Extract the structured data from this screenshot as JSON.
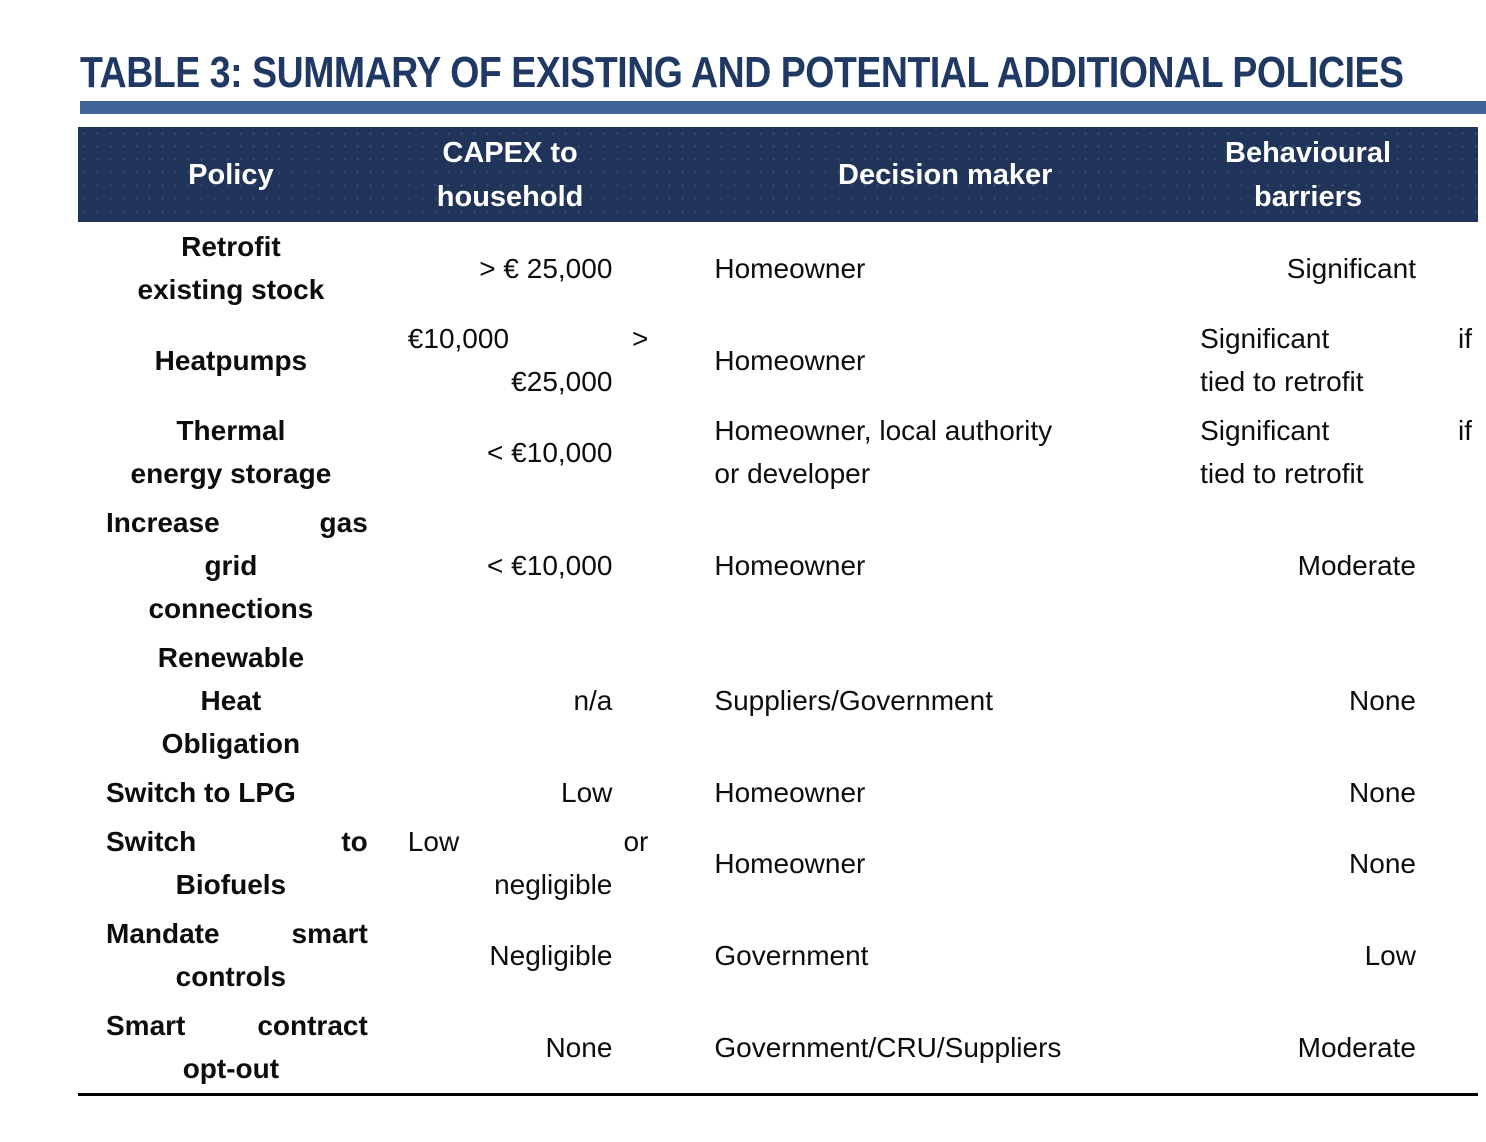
{
  "title": "TABLE 3: SUMMARY OF EXISTING AND POTENTIAL ADDITIONAL POLICIES",
  "colors": {
    "title_text": "#1F3864",
    "title_rule": "#3F6497",
    "header_bg": "#1F3458",
    "header_text": "#FFFFFF",
    "body_text": "#0D0D0D",
    "bottom_border": "#000000"
  },
  "table": {
    "columns": [
      "policy",
      "capex",
      "decision",
      "barriers"
    ],
    "headers": [
      {
        "key": "policy",
        "lines": [
          "Policy"
        ]
      },
      {
        "key": "capex",
        "lines": [
          "CAPEX to",
          "household"
        ]
      },
      {
        "key": "decision",
        "lines": [
          "Decision maker"
        ]
      },
      {
        "key": "barriers",
        "lines": [
          "Behavioural",
          "barriers"
        ]
      }
    ],
    "rows": [
      {
        "policy": [
          {
            "text": "Retrofit",
            "align": "center"
          },
          {
            "text": "existing stock",
            "align": "center"
          }
        ],
        "capex": [
          {
            "text": "> € 25,000",
            "align": "right"
          }
        ],
        "decision": [
          {
            "text": "Homeowner",
            "align": "left"
          }
        ],
        "barriers": [
          {
            "text": "Significant",
            "align": "right"
          }
        ]
      },
      {
        "policy": [
          {
            "text": "Heatpumps",
            "align": "center"
          }
        ],
        "capex": [
          {
            "text": "€10,000 >",
            "align": "spread"
          },
          {
            "text": "€25,000",
            "align": "right"
          }
        ],
        "decision": [
          {
            "text": "Homeowner",
            "align": "left"
          }
        ],
        "barriers": [
          {
            "text": "Significant if",
            "align": "spread"
          },
          {
            "text": "tied to retrofit",
            "align": "left"
          }
        ]
      },
      {
        "policy": [
          {
            "text": "Thermal",
            "align": "center"
          },
          {
            "text": "energy storage",
            "align": "center"
          }
        ],
        "capex": [
          {
            "text": "< €10,000",
            "align": "right"
          }
        ],
        "decision": [
          {
            "text": "Homeowner, local authority",
            "align": "left"
          },
          {
            "text": " or developer",
            "align": "left"
          }
        ],
        "barriers": [
          {
            "text": "Significant if",
            "align": "spread"
          },
          {
            "text": "tied to retrofit",
            "align": "left"
          }
        ]
      },
      {
        "policy": [
          {
            "text": "Increase gas",
            "align": "spread"
          },
          {
            "text": "grid",
            "align": "center"
          },
          {
            "text": "connections",
            "align": "center"
          }
        ],
        "capex": [
          {
            "text": "< €10,000",
            "align": "right"
          }
        ],
        "decision": [
          {
            "text": "Homeowner",
            "align": "left"
          }
        ],
        "barriers": [
          {
            "text": "Moderate",
            "align": "right"
          }
        ]
      },
      {
        "policy": [
          {
            "text": "Renewable",
            "align": "center"
          },
          {
            "text": "Heat",
            "align": "center"
          },
          {
            "text": "Obligation",
            "align": "center"
          }
        ],
        "capex": [
          {
            "text": "n/a",
            "align": "right"
          }
        ],
        "decision": [
          {
            "text": "Suppliers/Government",
            "align": "left"
          }
        ],
        "barriers": [
          {
            "text": "None",
            "align": "right"
          }
        ]
      },
      {
        "policy": [
          {
            "text": "Switch to LPG",
            "align": "left"
          }
        ],
        "capex": [
          {
            "text": "Low",
            "align": "right"
          }
        ],
        "decision": [
          {
            "text": "Homeowner",
            "align": "left"
          }
        ],
        "barriers": [
          {
            "text": "None",
            "align": "right"
          }
        ]
      },
      {
        "policy": [
          {
            "text": "Switch to",
            "align": "spread"
          },
          {
            "text": "Biofuels",
            "align": "center"
          }
        ],
        "capex": [
          {
            "text": "Low or",
            "align": "spread"
          },
          {
            "text": "negligible",
            "align": "right"
          }
        ],
        "decision": [
          {
            "text": "Homeowner",
            "align": "left"
          }
        ],
        "barriers": [
          {
            "text": "None",
            "align": "right"
          }
        ]
      },
      {
        "policy": [
          {
            "text": "Mandate smart",
            "align": "spread"
          },
          {
            "text": "controls",
            "align": "center"
          }
        ],
        "capex": [
          {
            "text": "Negligible",
            "align": "right"
          }
        ],
        "decision": [
          {
            "text": "Government",
            "align": "left"
          }
        ],
        "barriers": [
          {
            "text": "Low",
            "align": "right"
          }
        ]
      },
      {
        "policy": [
          {
            "text": "Smart contract",
            "align": "spread"
          },
          {
            "text": "opt-out",
            "align": "center"
          }
        ],
        "capex": [
          {
            "text": "None",
            "align": "right"
          }
        ],
        "decision": [
          {
            "text": "Government/CRU/Suppliers",
            "align": "left"
          }
        ],
        "barriers": [
          {
            "text": "Moderate",
            "align": "right"
          }
        ]
      }
    ]
  }
}
